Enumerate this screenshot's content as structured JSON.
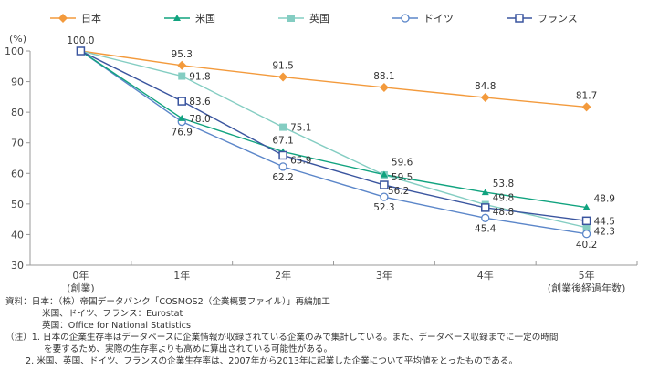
{
  "chart_data": {
    "type": "line",
    "title": "",
    "ylabel": "(%)",
    "xlabel": "(創業後経過年数)",
    "ylim": [
      30,
      100
    ],
    "yticks": [
      30,
      40,
      50,
      60,
      70,
      80,
      90,
      100
    ],
    "grid": false,
    "legend_position": "top",
    "categories": [
      "0年",
      "1年",
      "2年",
      "3年",
      "4年",
      "5年"
    ],
    "category_sublabels": [
      "(創業)",
      "",
      "",
      "",
      "",
      "(創業後経過年数)"
    ],
    "series": [
      {
        "name": "日本",
        "marker": "diamond-filled",
        "color": "#F39A3C",
        "values": [
          100.0,
          95.3,
          91.5,
          88.1,
          84.8,
          81.7
        ]
      },
      {
        "name": "米国",
        "marker": "triangle-filled",
        "color": "#11A37F",
        "values": [
          100.0,
          78.0,
          67.1,
          59.6,
          53.8,
          48.9
        ]
      },
      {
        "name": "英国",
        "marker": "square-filled",
        "color": "#84CDC2",
        "values": [
          100.0,
          91.8,
          75.1,
          59.5,
          49.8,
          42.3
        ]
      },
      {
        "name": "ドイツ",
        "marker": "circle-open",
        "color": "#5B86C9",
        "values": [
          100.0,
          76.9,
          62.2,
          52.3,
          45.4,
          40.2
        ]
      },
      {
        "name": "フランス",
        "marker": "square-open",
        "color": "#3A559F",
        "values": [
          100.0,
          83.6,
          65.9,
          56.2,
          48.8,
          44.5
        ]
      }
    ],
    "annotations": [
      {
        "series": 0,
        "index": 0,
        "text": "100.0"
      }
    ]
  },
  "notes": {
    "source_line1": "資料：日本：（株）帝国データバンク「COSMOS2（企業概要ファイル）」再編加工",
    "source_line2": "米国、ドイツ、フランス：Eurostat",
    "source_line3": "英国：Office for National Statistics",
    "note1_line1": "（注）1. 日本の企業生存率はデータベースに企業情報が収録されている企業のみで集計している。また、データベース収録までに一定の時間",
    "note1_line2": "を要するため、実際の生存率よりも高めに算出されている可能性がある。",
    "note2": "2. 米国、英国、ドイツ、フランスの企業生存率は、2007年から2013年に起業した企業について平均値をとったものである。"
  }
}
